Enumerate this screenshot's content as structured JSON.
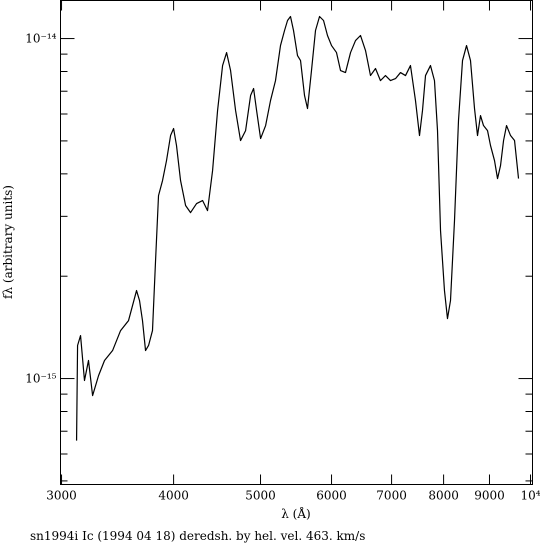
{
  "chart_data": {
    "type": "line",
    "x_label": "λ (Å)",
    "y_label": "fλ (arbitrary units)",
    "caption": "sn1994i Ic (1994 04 18) deredsh. by hel. vel.   463. km/s",
    "log_x": true,
    "log_y": true,
    "color": "#000000",
    "xlim": [
      2992,
      10051
    ],
    "ylim": [
      4.88e-16,
      1.294e-14
    ],
    "xticks": [
      3000,
      4000,
      5000,
      6000,
      7000,
      8000,
      9000,
      {
        "value": 10000,
        "label": "10⁴"
      }
    ],
    "yticks": [
      {
        "value": 1e-15,
        "label": "10⁻¹⁵"
      },
      {
        "value": 1e-14,
        "label": "10⁻¹⁴"
      }
    ],
    "y_minor_ticks": [
      5e-16,
      6e-16,
      7e-16,
      8e-16,
      9e-16,
      2e-15,
      3e-15,
      4e-15,
      5e-15,
      6e-15,
      7e-15,
      8e-15,
      9e-15
    ],
    "x": [
      3118,
      3126,
      3150,
      3182,
      3215,
      3249,
      3299,
      3350,
      3420,
      3491,
      3563,
      3637,
      3665,
      3693,
      3722,
      3751,
      3789,
      3819,
      3848,
      3888,
      3928,
      3969,
      4000,
      4030,
      4072,
      4125,
      4178,
      4243,
      4309,
      4364,
      4421,
      4478,
      4536,
      4583,
      4630,
      4690,
      4750,
      4812,
      4874,
      4912,
      4950,
      5001,
      5066,
      5130,
      5196,
      5263,
      5318,
      5359,
      5400,
      5442,
      5498,
      5541,
      5598,
      5641,
      5699,
      5758,
      5818,
      5878,
      5938,
      6000,
      6077,
      6140,
      6219,
      6300,
      6381,
      6463,
      6547,
      6631,
      6717,
      6803,
      6891,
      6980,
      7071,
      7162,
      7255,
      7348,
      7443,
      7520,
      7578,
      7637,
      7735,
      7815,
      7876,
      7937,
      8018,
      8080,
      8143,
      8227,
      8312,
      8398,
      8485,
      8572,
      8661,
      8728,
      8795,
      8863,
      8955,
      9024,
      9117,
      9188,
      9259,
      9331,
      9403,
      9500,
      9598,
      9697
    ],
    "values": [
      6.57e-16,
      1.251e-15,
      1.338e-15,
      9.87e-16,
      1.13e-15,
      8.91e-16,
      1.02e-15,
      1.13e-15,
      1.209e-15,
      1.384e-15,
      1.481e-15,
      1.815e-15,
      1.696e-15,
      1.481e-15,
      1.209e-15,
      1.251e-15,
      1.384e-15,
      2.224e-15,
      3.452e-15,
      3.823e-15,
      4.377e-15,
      5.185e-15,
      5.437e-15,
      4.845e-15,
      3.823e-15,
      3.228e-15,
      3.077e-15,
      3.271e-15,
      3.339e-15,
      3.119e-15,
      4.09e-15,
      6.14e-15,
      8.329e-15,
      9.095e-15,
      8.053e-15,
      6.14e-15,
      5.012e-15,
      5.362e-15,
      6.799e-15,
      7.128e-15,
      6.14e-15,
      5.08e-15,
      5.548e-15,
      6.571e-15,
      7.522e-15,
      9.537e-15,
      1.056e-14,
      1.13e-14,
      1.161e-14,
      1.056e-14,
      8.913e-15,
      8.616e-15,
      6.799e-15,
      6.225e-15,
      8.053e-15,
      1.056e-14,
      1.161e-14,
      1.13e-14,
      1.021e-14,
      9.537e-15,
      9.095e-15,
      8.053e-15,
      7.943e-15,
      9.095e-15,
      9.865e-15,
      1.021e-14,
      9.22e-15,
      7.783e-15,
      8.163e-15,
      7.522e-15,
      7.783e-15,
      7.522e-15,
      7.625e-15,
      7.943e-15,
      7.783e-15,
      8.329e-15,
      6.571e-15,
      5.185e-15,
      6.14e-15,
      7.783e-15,
      8.329e-15,
      7.522e-15,
      5.362e-15,
      2.725e-15,
      1.815e-15,
      1.501e-15,
      1.696e-15,
      2.915e-15,
      5.741e-15,
      8.616e-15,
      9.537e-15,
      8.616e-15,
      6.225e-15,
      5.185e-15,
      5.935e-15,
      5.548e-15,
      5.362e-15,
      4.845e-15,
      4.377e-15,
      3.874e-15,
      4.231e-15,
      5.012e-15,
      5.548e-15,
      5.185e-15,
      5.012e-15,
      3.874e-15
    ]
  }
}
